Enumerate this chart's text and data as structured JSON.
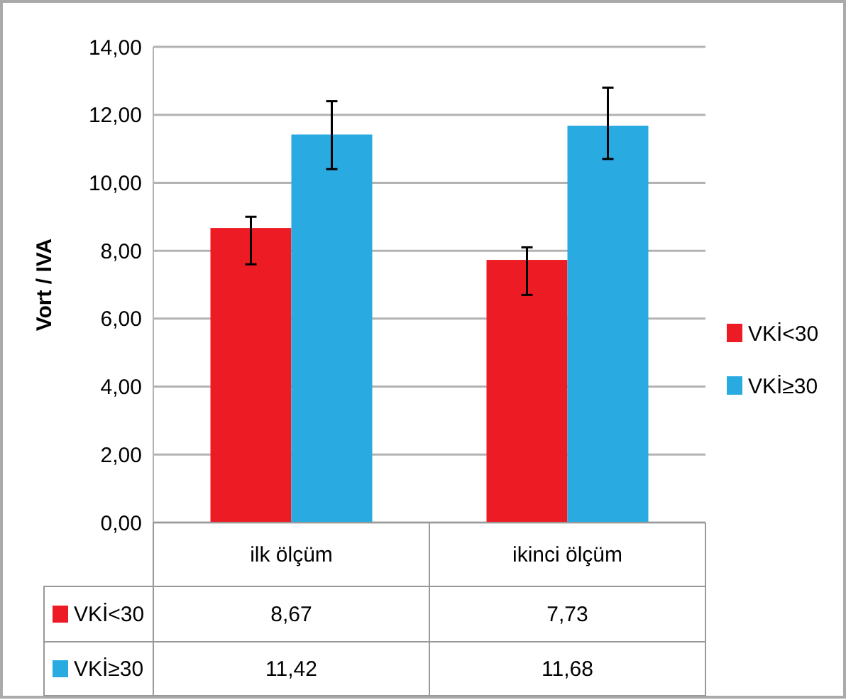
{
  "chart_data": {
    "type": "bar",
    "ylabel": "Vort / IVA",
    "categories": [
      "ilk ölçüm",
      "ikinci ölçüm"
    ],
    "series": [
      {
        "name": "VKİ<30",
        "color": "#ed1c24",
        "values": [
          8.67,
          7.73
        ],
        "value_labels": [
          "8,67",
          "7,73"
        ],
        "errors": [
          [
            7.6,
            9.0
          ],
          [
            6.7,
            8.1
          ]
        ]
      },
      {
        "name": "VKİ≥30",
        "color": "#29abe2",
        "values": [
          11.42,
          11.68
        ],
        "value_labels": [
          "11,42",
          "11,68"
        ],
        "errors": [
          [
            10.4,
            12.4
          ],
          [
            10.7,
            12.8
          ]
        ]
      }
    ],
    "ylim": [
      0,
      14
    ],
    "yticks": [
      {
        "value": 0,
        "label": "0,00"
      },
      {
        "value": 2,
        "label": "2,00"
      },
      {
        "value": 4,
        "label": "4,00"
      },
      {
        "value": 6,
        "label": "6,00"
      },
      {
        "value": 8,
        "label": "8,00"
      },
      {
        "value": 10,
        "label": "10,00"
      },
      {
        "value": 12,
        "label": "12,00"
      },
      {
        "value": 14,
        "label": "14,00"
      }
    ],
    "grid": "y",
    "legend": "right"
  }
}
